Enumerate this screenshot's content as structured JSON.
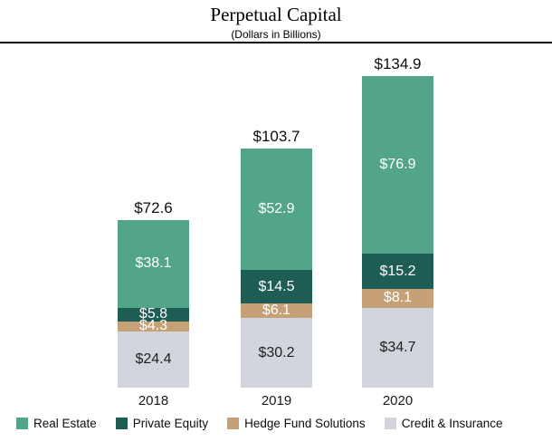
{
  "chart_data": {
    "type": "bar",
    "stacked": true,
    "title": "Perpetual Capital",
    "subtitle": "(Dollars in Billions)",
    "categories": [
      "2018",
      "2019",
      "2020"
    ],
    "totals": [
      72.6,
      103.7,
      134.9
    ],
    "totals_display": [
      "$72.6",
      "$103.7",
      "$134.9"
    ],
    "series": [
      {
        "name": "Real Estate",
        "color": "#52A58B",
        "label_color": "#FFFFFF",
        "values": [
          38.1,
          52.9,
          76.9
        ],
        "labels": [
          "$38.1",
          "$52.9",
          "$76.9"
        ]
      },
      {
        "name": "Private Equity",
        "color": "#1E5D53",
        "label_color": "#FFFFFF",
        "values": [
          5.8,
          14.5,
          15.2
        ],
        "labels": [
          "$5.8",
          "$14.5",
          "$15.2"
        ]
      },
      {
        "name": "Hedge Fund Solutions",
        "color": "#C6A177",
        "label_color": "#FFFFFF",
        "values": [
          4.3,
          6.1,
          8.1
        ],
        "labels": [
          "$4.3",
          "$6.1",
          "$8.1"
        ]
      },
      {
        "name": "Credit & Insurance",
        "color": "#D2D5DC",
        "label_color": "#1F1F1F",
        "values": [
          24.4,
          30.2,
          34.7
        ],
        "labels": [
          "$24.4",
          "$30.2",
          "$34.7"
        ]
      }
    ],
    "ylim": [
      0,
      148
    ],
    "grid": false,
    "legend_position": "bottom"
  }
}
